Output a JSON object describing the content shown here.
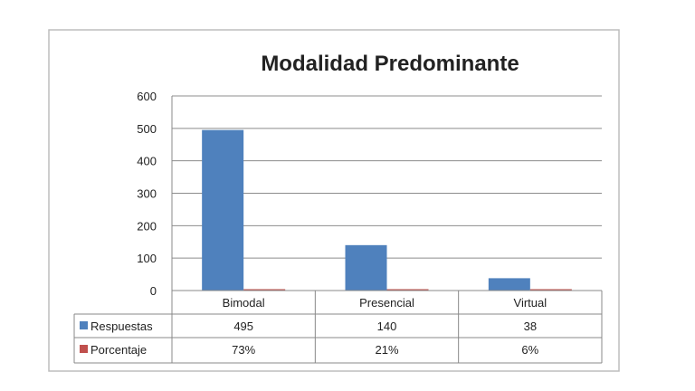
{
  "chart_data": {
    "type": "bar",
    "title": "Modalidad Predominante",
    "categories": [
      "Bimodal",
      "Presencial",
      "Virtual"
    ],
    "series": [
      {
        "name": "Respuestas",
        "values": [
          495,
          140,
          38
        ],
        "labels": [
          "495",
          "140",
          "38"
        ],
        "color": "#4f81bd"
      },
      {
        "name": "Porcentaje",
        "values": [
          0.73,
          0.21,
          0.06
        ],
        "labels": [
          "73%",
          "21%",
          "6%"
        ],
        "color": "#c0504d"
      }
    ],
    "ylim": [
      0,
      600
    ],
    "yticks": [
      "0",
      "100",
      "200",
      "300",
      "400",
      "500",
      "600"
    ],
    "grid": true,
    "legend": "data-table"
  }
}
